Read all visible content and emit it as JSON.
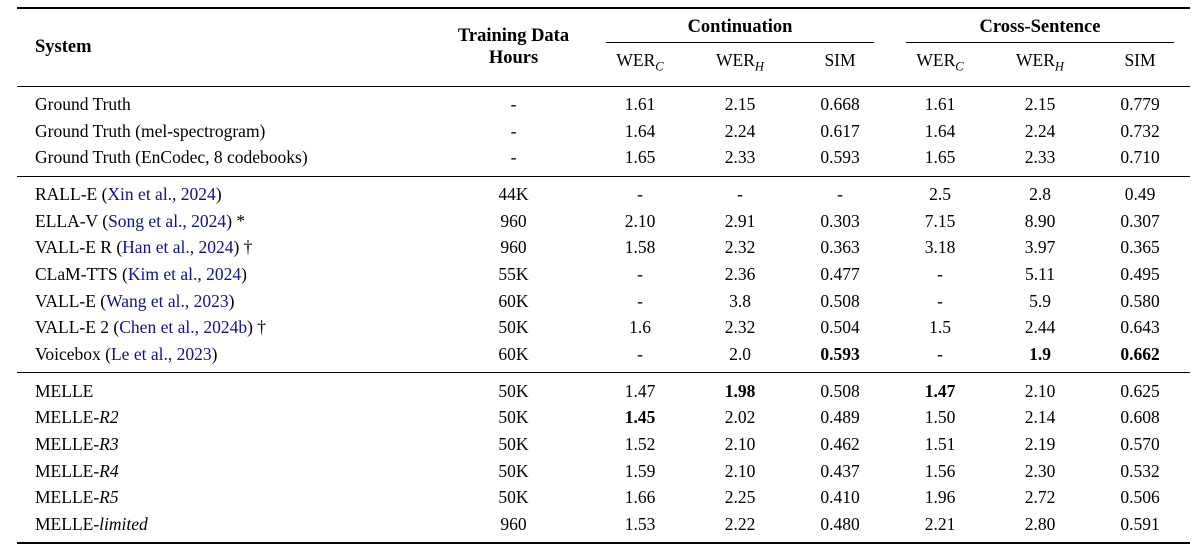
{
  "colors": {
    "citation": "#101096",
    "text": "#000000",
    "rule": "#000000",
    "background": "#ffffff"
  },
  "header": {
    "system": "System",
    "training_line1": "Training Data",
    "training_line2": "Hours",
    "groups": [
      "Continuation",
      "Cross-Sentence"
    ],
    "metrics": [
      {
        "base": "WER",
        "sub": "C"
      },
      {
        "base": "WER",
        "sub": "H"
      },
      {
        "base": "SIM",
        "sub": ""
      },
      {
        "base": "WER",
        "sub": "C"
      },
      {
        "base": "WER",
        "sub": "H"
      },
      {
        "base": "SIM",
        "sub": ""
      }
    ]
  },
  "sections": [
    {
      "name": "ground-truth",
      "rows": [
        {
          "system": [
            {
              "t": "Ground Truth"
            }
          ],
          "hours": "-",
          "values": [
            {
              "v": "1.61"
            },
            {
              "v": "2.15"
            },
            {
              "v": "0.668"
            },
            {
              "v": "1.61"
            },
            {
              "v": "2.15"
            },
            {
              "v": "0.779"
            }
          ]
        },
        {
          "system": [
            {
              "t": "Ground Truth (mel-spectrogram)"
            }
          ],
          "hours": "-",
          "values": [
            {
              "v": "1.64"
            },
            {
              "v": "2.24"
            },
            {
              "v": "0.617"
            },
            {
              "v": "1.64"
            },
            {
              "v": "2.24"
            },
            {
              "v": "0.732"
            }
          ]
        },
        {
          "system": [
            {
              "t": "Ground Truth (EnCodec, 8 codebooks)"
            }
          ],
          "hours": "-",
          "values": [
            {
              "v": "1.65"
            },
            {
              "v": "2.33"
            },
            {
              "v": "0.593"
            },
            {
              "v": "1.65"
            },
            {
              "v": "2.33"
            },
            {
              "v": "0.710"
            }
          ]
        }
      ]
    },
    {
      "name": "baselines",
      "rows": [
        {
          "system": [
            {
              "t": "RALL-E ("
            },
            {
              "t": "Xin et al., 2024",
              "cite": true
            },
            {
              "t": ")"
            }
          ],
          "hours": "44K",
          "values": [
            {
              "v": "-"
            },
            {
              "v": "-"
            },
            {
              "v": "-"
            },
            {
              "v": "2.5"
            },
            {
              "v": "2.8"
            },
            {
              "v": "0.49"
            }
          ]
        },
        {
          "system": [
            {
              "t": "ELLA-V ("
            },
            {
              "t": "Song et al., 2024",
              "cite": true
            },
            {
              "t": ") *"
            }
          ],
          "hours": "960",
          "values": [
            {
              "v": "2.10"
            },
            {
              "v": "2.91"
            },
            {
              "v": "0.303"
            },
            {
              "v": "7.15"
            },
            {
              "v": "8.90"
            },
            {
              "v": "0.307"
            }
          ]
        },
        {
          "system": [
            {
              "t": "VALL-E R ("
            },
            {
              "t": "Han et al., 2024",
              "cite": true
            },
            {
              "t": ") †"
            }
          ],
          "hours": "960",
          "values": [
            {
              "v": "1.58"
            },
            {
              "v": "2.32"
            },
            {
              "v": "0.363"
            },
            {
              "v": "3.18"
            },
            {
              "v": "3.97"
            },
            {
              "v": "0.365"
            }
          ]
        },
        {
          "system": [
            {
              "t": "CLaM-TTS ("
            },
            {
              "t": "Kim et al., 2024",
              "cite": true
            },
            {
              "t": ")"
            }
          ],
          "hours": "55K",
          "values": [
            {
              "v": "-"
            },
            {
              "v": "2.36"
            },
            {
              "v": "0.477"
            },
            {
              "v": "-"
            },
            {
              "v": "5.11"
            },
            {
              "v": "0.495"
            }
          ]
        },
        {
          "system": [
            {
              "t": "VALL-E ("
            },
            {
              "t": "Wang et al., 2023",
              "cite": true
            },
            {
              "t": ")"
            }
          ],
          "hours": "60K",
          "values": [
            {
              "v": "-"
            },
            {
              "v": "3.8"
            },
            {
              "v": "0.508"
            },
            {
              "v": "-"
            },
            {
              "v": "5.9"
            },
            {
              "v": "0.580"
            }
          ]
        },
        {
          "system": [
            {
              "t": "VALL-E 2 ("
            },
            {
              "t": "Chen et al., 2024b",
              "cite": true
            },
            {
              "t": ") †"
            }
          ],
          "hours": "50K",
          "values": [
            {
              "v": "1.6"
            },
            {
              "v": "2.32"
            },
            {
              "v": "0.504"
            },
            {
              "v": "1.5"
            },
            {
              "v": "2.44"
            },
            {
              "v": "0.643"
            }
          ]
        },
        {
          "system": [
            {
              "t": "Voicebox ("
            },
            {
              "t": "Le et al., 2023",
              "cite": true
            },
            {
              "t": ")"
            }
          ],
          "hours": "60K",
          "values": [
            {
              "v": "-"
            },
            {
              "v": "2.0"
            },
            {
              "v": "0.593",
              "b": true
            },
            {
              "v": "-"
            },
            {
              "v": "1.9",
              "b": true
            },
            {
              "v": "0.662",
              "b": true
            }
          ]
        }
      ]
    },
    {
      "name": "melle",
      "rows": [
        {
          "system": [
            {
              "t": "MELLE"
            }
          ],
          "hours": "50K",
          "values": [
            {
              "v": "1.47"
            },
            {
              "v": "1.98",
              "b": true
            },
            {
              "v": "0.508"
            },
            {
              "v": "1.47",
              "b": true
            },
            {
              "v": "2.10"
            },
            {
              "v": "0.625"
            }
          ]
        },
        {
          "system": [
            {
              "t": "MELLE-"
            },
            {
              "t": "R2",
              "i": true
            }
          ],
          "hours": "50K",
          "values": [
            {
              "v": "1.45",
              "b": true
            },
            {
              "v": "2.02"
            },
            {
              "v": "0.489"
            },
            {
              "v": "1.50"
            },
            {
              "v": "2.14"
            },
            {
              "v": "0.608"
            }
          ]
        },
        {
          "system": [
            {
              "t": "MELLE-"
            },
            {
              "t": "R3",
              "i": true
            }
          ],
          "hours": "50K",
          "values": [
            {
              "v": "1.52"
            },
            {
              "v": "2.10"
            },
            {
              "v": "0.462"
            },
            {
              "v": "1.51"
            },
            {
              "v": "2.19"
            },
            {
              "v": "0.570"
            }
          ]
        },
        {
          "system": [
            {
              "t": "MELLE-"
            },
            {
              "t": "R4",
              "i": true
            }
          ],
          "hours": "50K",
          "values": [
            {
              "v": "1.59"
            },
            {
              "v": "2.10"
            },
            {
              "v": "0.437"
            },
            {
              "v": "1.56"
            },
            {
              "v": "2.30"
            },
            {
              "v": "0.532"
            }
          ]
        },
        {
          "system": [
            {
              "t": "MELLE-"
            },
            {
              "t": "R5",
              "i": true
            }
          ],
          "hours": "50K",
          "values": [
            {
              "v": "1.66"
            },
            {
              "v": "2.25"
            },
            {
              "v": "0.410"
            },
            {
              "v": "1.96"
            },
            {
              "v": "2.72"
            },
            {
              "v": "0.506"
            }
          ]
        },
        {
          "system": [
            {
              "t": "MELLE-"
            },
            {
              "t": "limited",
              "i": true
            }
          ],
          "hours": "960",
          "values": [
            {
              "v": "1.53"
            },
            {
              "v": "2.22"
            },
            {
              "v": "0.480"
            },
            {
              "v": "2.21"
            },
            {
              "v": "2.80"
            },
            {
              "v": "0.591"
            }
          ]
        }
      ]
    }
  ]
}
